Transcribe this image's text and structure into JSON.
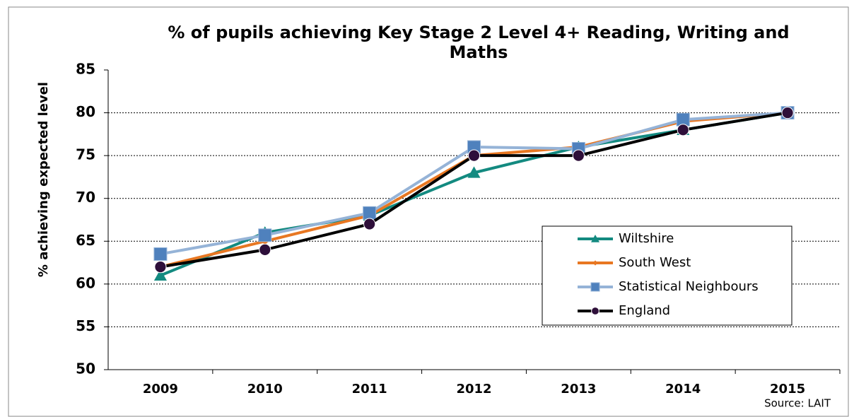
{
  "chart_data": {
    "type": "line",
    "title": "% of pupils achieving Key Stage 2 Level 4+ Reading, Writing and Maths",
    "y_label": "% achieving expected level",
    "annotation": "Source: LAIT",
    "categories": [
      "2009",
      "2010",
      "2011",
      "2012",
      "2013",
      "2014",
      "2015"
    ],
    "series": [
      {
        "name": "Wiltshire",
        "color": "#138a80",
        "marker": "triangle",
        "marker_color": "#138a80",
        "values": [
          61,
          66,
          68,
          73,
          76,
          78,
          80
        ]
      },
      {
        "name": "South West",
        "color": "#e87722",
        "marker": "diamond",
        "marker_color": "#e87722",
        "values": [
          62,
          65,
          68,
          75,
          76,
          79,
          80
        ]
      },
      {
        "name": "Statistical Neighbours",
        "color": "#95b3d7",
        "marker": "square",
        "marker_color": "#4f81bd",
        "values": [
          63.5,
          65.7,
          68.3,
          76,
          75.8,
          79.2,
          80
        ]
      },
      {
        "name": "England",
        "color": "#000000",
        "marker": "circle",
        "marker_color": "#2e0f3a",
        "values": [
          62,
          64,
          67,
          75,
          75,
          78,
          80
        ]
      }
    ],
    "ylim": [
      50,
      85
    ],
    "yticks": [
      50,
      55,
      60,
      65,
      70,
      75,
      80,
      85
    ],
    "grid": true,
    "legend": "lower right"
  }
}
